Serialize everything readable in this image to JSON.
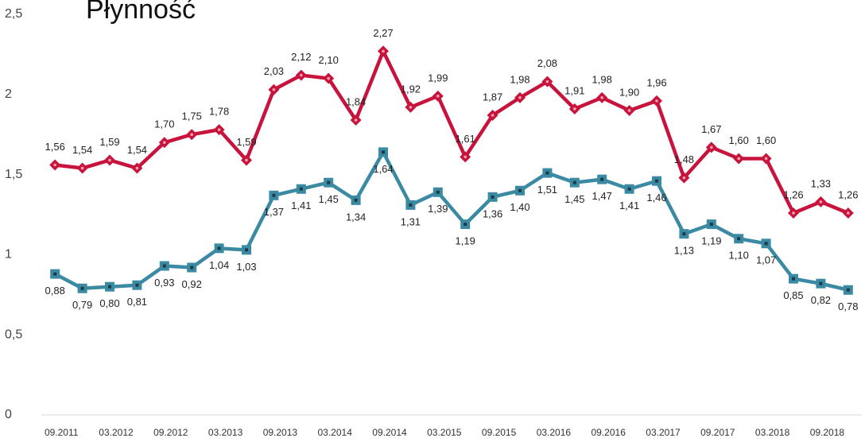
{
  "chart_data": {
    "type": "line",
    "title": "Płynność",
    "categories": [
      "09.2011",
      null,
      "03.2012",
      null,
      "09.2012",
      null,
      "03.2013",
      null,
      "09.2013",
      null,
      "03.2014",
      null,
      "09.2014",
      null,
      "03.2015",
      null,
      "09.2015",
      null,
      "03.2016",
      null,
      "09.2016",
      null,
      "03.2017",
      null,
      "09.2017",
      null,
      "03.2018",
      null,
      "09.2018",
      null
    ],
    "series": [
      {
        "color": "#c8143c",
        "marker": "diamond",
        "values": [
          1.56,
          1.54,
          1.59,
          1.54,
          1.7,
          1.75,
          1.78,
          1.59,
          2.03,
          2.12,
          2.1,
          1.84,
          2.27,
          1.92,
          1.99,
          1.61,
          1.87,
          1.98,
          2.08,
          1.91,
          1.98,
          1.9,
          1.96,
          1.48,
          1.67,
          1.6,
          1.6,
          1.26,
          1.33,
          1.26
        ],
        "value_labels": [
          "1,56",
          "1,54",
          "1,59",
          "1,54",
          "1,70",
          "1,75",
          "1,78",
          "1,59",
          "2,03",
          "2,12",
          "2,10",
          "1,84",
          "2,27",
          "1,92",
          "1,99",
          "1,61",
          "1,87",
          "1,98",
          "2,08",
          "1,91",
          "1,98",
          "1,90",
          "1,96",
          "1,48",
          "1,67",
          "1,60",
          "1,60",
          "1,26",
          "1,33",
          "1,26"
        ]
      },
      {
        "color": "#3b8aa3",
        "marker": "square",
        "values": [
          0.88,
          0.79,
          0.8,
          0.81,
          0.93,
          0.92,
          1.04,
          1.03,
          1.37,
          1.41,
          1.45,
          1.34,
          1.64,
          1.31,
          1.39,
          1.19,
          1.36,
          1.4,
          1.51,
          1.45,
          1.47,
          1.41,
          1.46,
          1.13,
          1.19,
          1.1,
          1.07,
          0.85,
          0.82,
          0.78
        ],
        "value_labels": [
          "0,88",
          "0,79",
          "0,80",
          "0,81",
          "0,93",
          "0,92",
          "1,04",
          "1,03",
          "1,37",
          "1,41",
          "1,45",
          "1,34",
          "1,64",
          "1,31",
          "1,39",
          "1,19",
          "1,36",
          "1,40",
          "1,51",
          "1,45",
          "1,47",
          "1,41",
          "1,46",
          "1,13",
          "1,19",
          "1,10",
          "1,07",
          "0,85",
          "0,82",
          "0,78"
        ]
      }
    ],
    "ylim": [
      0,
      2.5
    ],
    "yticks": [
      0,
      {
        "value": 0.5,
        "label": "0,5"
      },
      1,
      {
        "value": 1.5,
        "label": "1,5"
      },
      2,
      {
        "value": 2.5,
        "label": "2,5"
      }
    ],
    "grid": false
  }
}
